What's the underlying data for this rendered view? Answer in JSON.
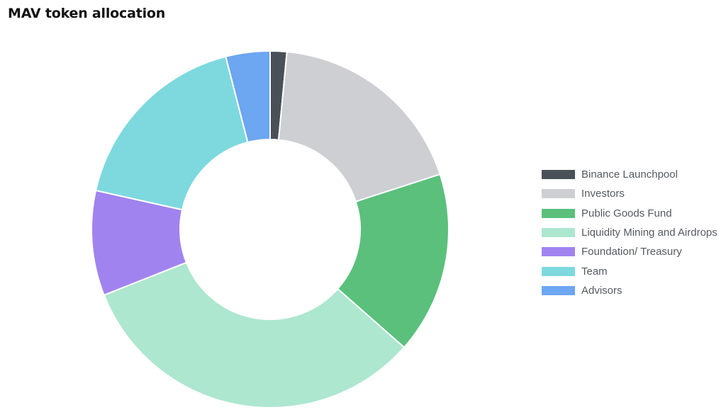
{
  "chart_data": {
    "type": "pie",
    "title": "MAV token allocation",
    "donut": true,
    "series": [
      {
        "name": "Binance Launchpool",
        "value": 1.5,
        "color": "#4a5058"
      },
      {
        "name": "Investors",
        "value": 18.5,
        "color": "#cdcfd3"
      },
      {
        "name": "Public Goods Fund",
        "value": 16.5,
        "color": "#5ac07c"
      },
      {
        "name": "Liquidity Mining and Airdrops",
        "value": 32.5,
        "color": "#ade7cf"
      },
      {
        "name": "Foundation/ Treasury",
        "value": 9.5,
        "color": "#a183ef"
      },
      {
        "name": "Team",
        "value": 17.5,
        "color": "#7dd9de"
      },
      {
        "name": "Advisors",
        "value": 4,
        "color": "#6da6f1"
      }
    ],
    "legend_position": "right"
  }
}
